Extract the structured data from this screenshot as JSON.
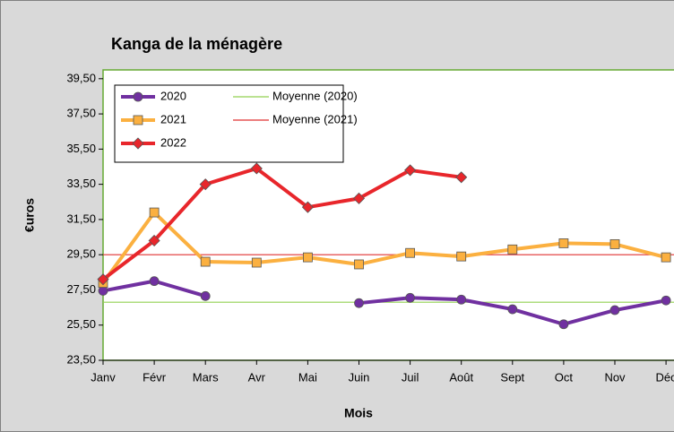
{
  "chart_data": {
    "type": "line",
    "title": "Kanga de la ménagère",
    "x_label": "Mois",
    "y_label": "€uros",
    "categories": [
      "Janv",
      "Févr",
      "Mars",
      "Avr",
      "Mai",
      "Juin",
      "Juil",
      "Août",
      "Sept",
      "Oct",
      "Nov",
      "Déc"
    ],
    "series": [
      {
        "name": "2020",
        "color": "#7030a0",
        "marker": "circle",
        "values": [
          27.45,
          28.0,
          27.15,
          null,
          null,
          26.75,
          27.05,
          26.95,
          26.4,
          25.55,
          26.35,
          26.9
        ]
      },
      {
        "name": "2021",
        "color": "#fbb040",
        "marker": "square",
        "values": [
          27.9,
          31.9,
          29.1,
          29.05,
          29.35,
          28.95,
          29.6,
          29.4,
          29.8,
          30.15,
          30.1,
          29.35
        ]
      },
      {
        "name": "2022",
        "color": "#e8262b",
        "marker": "diamond",
        "values": [
          28.1,
          30.3,
          33.5,
          34.4,
          32.2,
          32.7,
          34.3,
          33.9,
          null,
          null,
          null,
          null
        ]
      }
    ],
    "reference_lines": [
      {
        "name": "Moyenne (2020)",
        "color": "#92d050",
        "value": 26.8
      },
      {
        "name": "Moyenne (2021)",
        "color": "#e03030",
        "value": 29.5
      }
    ],
    "ylim": [
      23.5,
      40.0
    ],
    "yticks": [
      {
        "value": 23.5,
        "label": "23,50"
      },
      {
        "value": 25.5,
        "label": "25,50"
      },
      {
        "value": 27.5,
        "label": "27,50"
      },
      {
        "value": 29.5,
        "label": "29,50"
      },
      {
        "value": 31.5,
        "label": "31,50"
      },
      {
        "value": 33.5,
        "label": "33,50"
      },
      {
        "value": 35.5,
        "label": "35,50"
      },
      {
        "value": 37.5,
        "label": "37,50"
      },
      {
        "value": 39.5,
        "label": "39,50"
      }
    ],
    "legend": "top-left"
  }
}
